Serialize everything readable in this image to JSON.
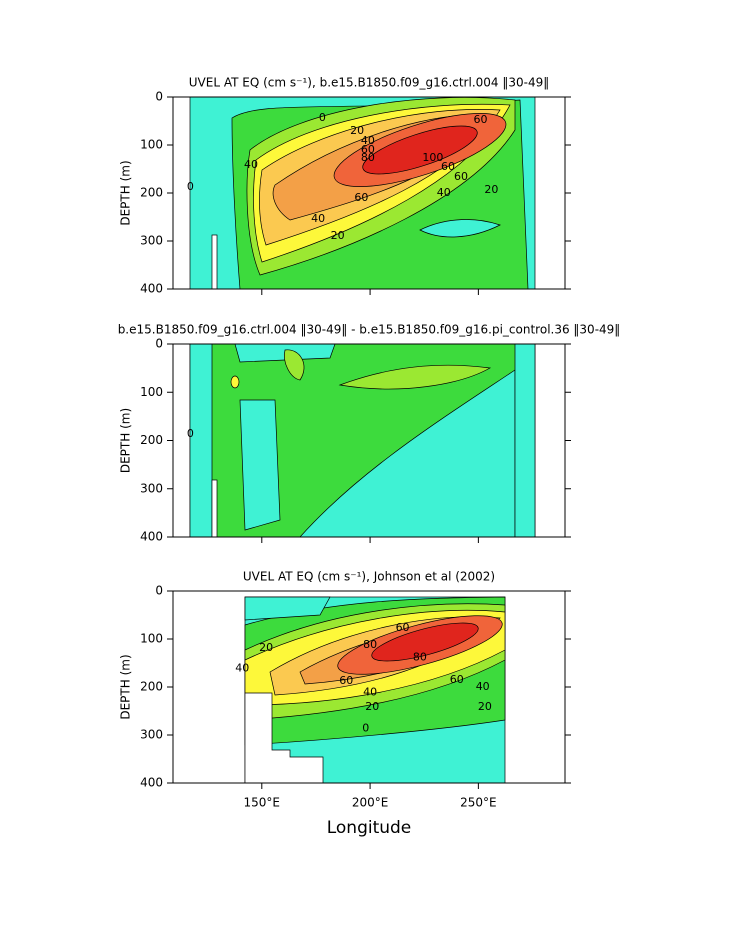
{
  "chart_data": [
    {
      "type": "contour",
      "title": "UVEL AT EQ (cm s⁻¹), b.e15.B1850.f09_g16.ctrl.004 ‖30-49‖",
      "y_label": "DEPTH (m)",
      "xlim": [
        109,
        290
      ],
      "ylim": [
        0,
        400
      ],
      "y_inverted": true,
      "xticks": [
        150,
        200,
        250
      ],
      "yticks": [
        0,
        100,
        200,
        300,
        400
      ],
      "contour_labels": [
        {
          "x": 178,
          "y": 44,
          "label": 0
        },
        {
          "x": 194,
          "y": 71,
          "label": 20
        },
        {
          "x": 199,
          "y": 92,
          "label": 40
        },
        {
          "x": 199,
          "y": 110,
          "label": 60
        },
        {
          "x": 199,
          "y": 127,
          "label": 80
        },
        {
          "x": 229,
          "y": 127,
          "label": 100
        },
        {
          "x": 236,
          "y": 146,
          "label": 60
        },
        {
          "x": 242,
          "y": 167,
          "label": 60
        },
        {
          "x": 256,
          "y": 194,
          "label": 20
        },
        {
          "x": 234,
          "y": 200,
          "label": 40
        },
        {
          "x": 196,
          "y": 210,
          "label": 60
        },
        {
          "x": 176,
          "y": 254,
          "label": 40
        },
        {
          "x": 185,
          "y": 290,
          "label": 20
        },
        {
          "x": 145,
          "y": 142,
          "label": 40
        },
        {
          "x": 251,
          "y": 48,
          "label": 60
        },
        {
          "x": 117,
          "y": 188,
          "label": 0
        }
      ]
    },
    {
      "type": "contour",
      "title": "b.e15.B1850.f09_g16.ctrl.004 ‖30-49‖ - b.e15.B1850.f09_g16.pi_control.36 ‖30-49‖",
      "y_label": "DEPTH (m)",
      "xlim": [
        109,
        290
      ],
      "ylim": [
        0,
        400
      ],
      "y_inverted": true,
      "xticks": [
        150,
        200,
        250
      ],
      "yticks": [
        0,
        100,
        200,
        300,
        400
      ],
      "contour_labels": [
        {
          "x": 117,
          "y": 187,
          "label": 0
        }
      ]
    },
    {
      "type": "contour",
      "title": "UVEL AT EQ (cm s⁻¹), Johnson et al (2002)",
      "y_label": "DEPTH (m)",
      "x_label": "Longitude",
      "xlim": [
        109,
        290
      ],
      "ylim": [
        0,
        400
      ],
      "y_inverted": true,
      "xticks": [
        {
          "value": 150,
          "label": "150°E"
        },
        {
          "value": 200,
          "label": "200°E"
        },
        {
          "value": 250,
          "label": "250°E"
        }
      ],
      "yticks": [
        0,
        100,
        200,
        300,
        400
      ],
      "contour_labels": [
        {
          "x": 152,
          "y": 119,
          "label": 20
        },
        {
          "x": 141,
          "y": 161,
          "label": 40
        },
        {
          "x": 200,
          "y": 112,
          "label": 80
        },
        {
          "x": 189,
          "y": 188,
          "label": 60
        },
        {
          "x": 200,
          "y": 211,
          "label": 40
        },
        {
          "x": 201,
          "y": 242,
          "label": 20
        },
        {
          "x": 198,
          "y": 286,
          "label": 0
        },
        {
          "x": 223,
          "y": 139,
          "label": 80
        },
        {
          "x": 240,
          "y": 185,
          "label": 60
        },
        {
          "x": 252,
          "y": 200,
          "label": 40
        },
        {
          "x": 253,
          "y": 242,
          "label": 20
        },
        {
          "x": 215,
          "y": 77,
          "label": 60
        }
      ]
    }
  ]
}
